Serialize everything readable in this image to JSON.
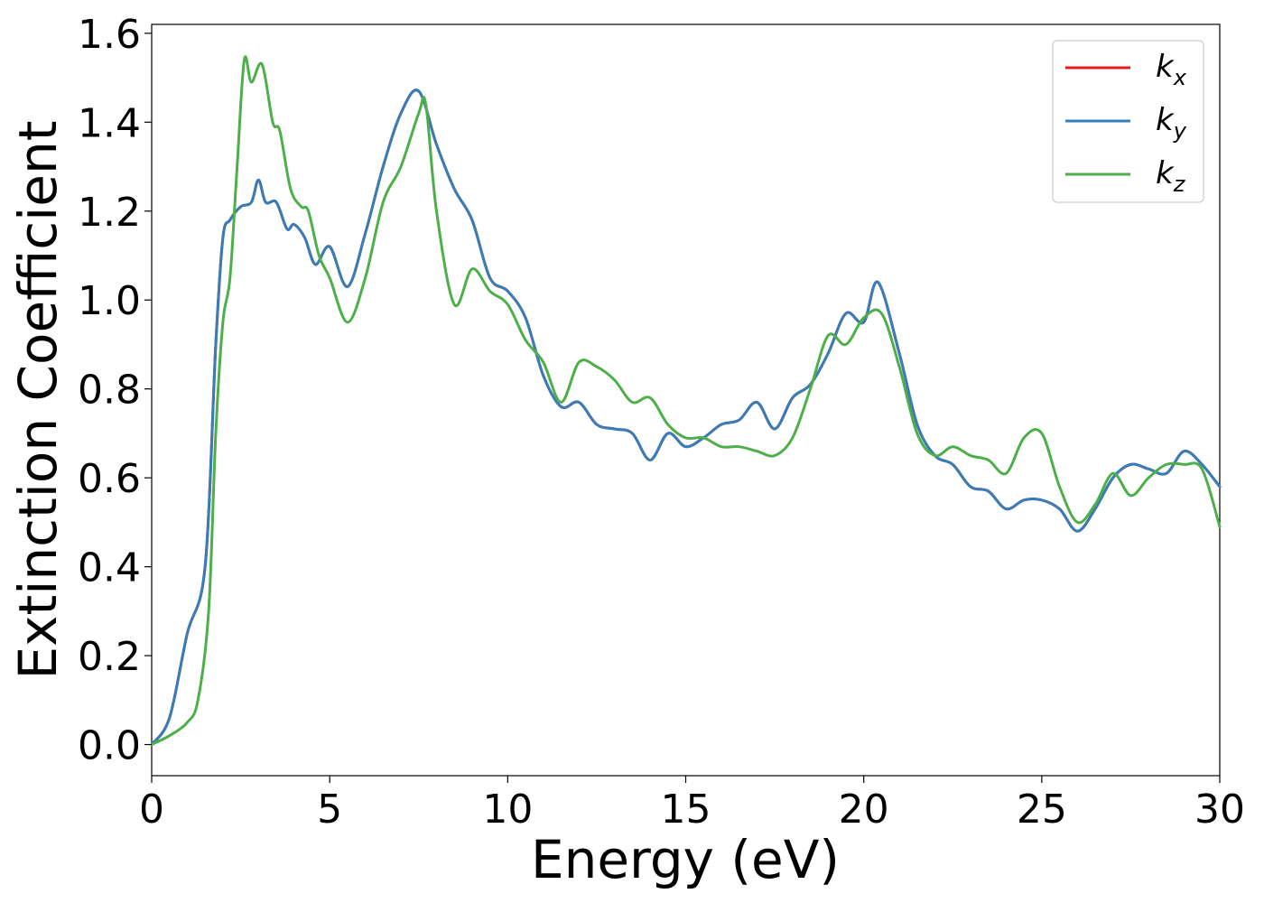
{
  "chart_data": {
    "type": "line",
    "title": "",
    "xlabel": "Energy (eV)",
    "ylabel": "Extinction Coefficient",
    "xlim": [
      0,
      30
    ],
    "ylim": [
      -0.07,
      1.62
    ],
    "xticks": [
      0,
      5,
      10,
      15,
      20,
      25,
      30
    ],
    "xtick_labels": [
      "0",
      "5",
      "10",
      "15",
      "20",
      "25",
      "30"
    ],
    "yticks": [
      0.0,
      0.2,
      0.4,
      0.6,
      0.8,
      1.0,
      1.2,
      1.4,
      1.6
    ],
    "ytick_labels": [
      "0.0",
      "0.2",
      "0.4",
      "0.6",
      "0.8",
      "1.0",
      "1.2",
      "1.4",
      "1.6"
    ],
    "grid": false,
    "legend_position": "top-right",
    "series": [
      {
        "name": "k",
        "subscript": "x",
        "color": "#e41a1c",
        "x": [
          0,
          0.5,
          1.0,
          1.5,
          1.8,
          2.0,
          2.2,
          2.5,
          2.8,
          3.0,
          3.2,
          3.5,
          3.8,
          4.0,
          4.3,
          4.6,
          5.0,
          5.5,
          6.0,
          6.5,
          7.0,
          7.5,
          8.0,
          8.5,
          9.0,
          9.5,
          10.0,
          10.5,
          11.0,
          11.5,
          12.0,
          12.5,
          13.0,
          13.5,
          14.0,
          14.5,
          15.0,
          15.5,
          16.0,
          16.5,
          17.0,
          17.5,
          18.0,
          18.5,
          19.0,
          19.5,
          20.0,
          20.4,
          21.0,
          21.5,
          22.0,
          22.5,
          23.0,
          23.5,
          24.0,
          24.5,
          25.0,
          25.5,
          26.0,
          26.5,
          27.0,
          27.5,
          28.0,
          28.5,
          29.0,
          29.5,
          30.0
        ],
        "y": [
          0.0,
          0.06,
          0.25,
          0.4,
          0.9,
          1.14,
          1.18,
          1.21,
          1.22,
          1.27,
          1.22,
          1.22,
          1.16,
          1.17,
          1.14,
          1.08,
          1.12,
          1.03,
          1.15,
          1.3,
          1.42,
          1.47,
          1.35,
          1.25,
          1.18,
          1.05,
          1.02,
          0.96,
          0.83,
          0.76,
          0.77,
          0.72,
          0.71,
          0.7,
          0.64,
          0.7,
          0.67,
          0.69,
          0.72,
          0.73,
          0.77,
          0.71,
          0.78,
          0.81,
          0.88,
          0.97,
          0.95,
          1.04,
          0.88,
          0.72,
          0.65,
          0.63,
          0.58,
          0.57,
          0.53,
          0.55,
          0.55,
          0.53,
          0.48,
          0.53,
          0.6,
          0.63,
          0.62,
          0.61,
          0.66,
          0.63,
          0.58
        ]
      },
      {
        "name": "k",
        "subscript": "y",
        "color": "#377eb8",
        "x": [
          0,
          0.5,
          1.0,
          1.5,
          1.8,
          2.0,
          2.2,
          2.5,
          2.8,
          3.0,
          3.2,
          3.5,
          3.8,
          4.0,
          4.3,
          4.6,
          5.0,
          5.5,
          6.0,
          6.5,
          7.0,
          7.5,
          8.0,
          8.5,
          9.0,
          9.5,
          10.0,
          10.5,
          11.0,
          11.5,
          12.0,
          12.5,
          13.0,
          13.5,
          14.0,
          14.5,
          15.0,
          15.5,
          16.0,
          16.5,
          17.0,
          17.5,
          18.0,
          18.5,
          19.0,
          19.5,
          20.0,
          20.4,
          21.0,
          21.5,
          22.0,
          22.5,
          23.0,
          23.5,
          24.0,
          24.5,
          25.0,
          25.5,
          26.0,
          26.5,
          27.0,
          27.5,
          28.0,
          28.5,
          29.0,
          29.5,
          30.0
        ],
        "y": [
          0.0,
          0.06,
          0.25,
          0.4,
          0.9,
          1.14,
          1.18,
          1.21,
          1.22,
          1.27,
          1.22,
          1.22,
          1.16,
          1.17,
          1.14,
          1.08,
          1.12,
          1.03,
          1.15,
          1.3,
          1.42,
          1.47,
          1.35,
          1.25,
          1.18,
          1.05,
          1.02,
          0.96,
          0.83,
          0.76,
          0.77,
          0.72,
          0.71,
          0.7,
          0.64,
          0.7,
          0.67,
          0.69,
          0.72,
          0.73,
          0.77,
          0.71,
          0.78,
          0.81,
          0.88,
          0.97,
          0.95,
          1.04,
          0.88,
          0.72,
          0.65,
          0.63,
          0.58,
          0.57,
          0.53,
          0.55,
          0.55,
          0.53,
          0.48,
          0.53,
          0.6,
          0.63,
          0.62,
          0.61,
          0.66,
          0.63,
          0.58
        ]
      },
      {
        "name": "k",
        "subscript": "z",
        "color": "#4daf4a",
        "x": [
          0,
          0.5,
          1.0,
          1.3,
          1.6,
          1.8,
          2.0,
          2.2,
          2.4,
          2.6,
          2.8,
          3.1,
          3.4,
          3.6,
          3.9,
          4.2,
          4.4,
          4.7,
          5.0,
          5.5,
          6.0,
          6.5,
          7.0,
          7.5,
          7.7,
          8.0,
          8.5,
          9.0,
          9.5,
          10.0,
          10.5,
          11.0,
          11.5,
          12.0,
          12.5,
          13.0,
          13.5,
          14.0,
          14.5,
          15.0,
          15.5,
          16.0,
          16.5,
          17.0,
          17.5,
          18.0,
          18.5,
          19.0,
          19.5,
          20.0,
          20.5,
          21.0,
          21.5,
          22.0,
          22.5,
          23.0,
          23.5,
          24.0,
          24.5,
          25.0,
          25.5,
          26.0,
          26.5,
          27.0,
          27.5,
          28.0,
          28.5,
          29.0,
          29.5,
          30.0
        ],
        "y": [
          0.0,
          0.02,
          0.05,
          0.1,
          0.3,
          0.7,
          0.95,
          1.05,
          1.3,
          1.54,
          1.49,
          1.53,
          1.4,
          1.38,
          1.25,
          1.21,
          1.2,
          1.1,
          1.05,
          0.95,
          1.05,
          1.22,
          1.3,
          1.42,
          1.44,
          1.2,
          0.99,
          1.07,
          1.02,
          0.99,
          0.91,
          0.86,
          0.77,
          0.86,
          0.85,
          0.82,
          0.77,
          0.78,
          0.72,
          0.69,
          0.69,
          0.67,
          0.67,
          0.66,
          0.65,
          0.69,
          0.8,
          0.92,
          0.9,
          0.96,
          0.97,
          0.85,
          0.7,
          0.65,
          0.67,
          0.65,
          0.64,
          0.61,
          0.69,
          0.7,
          0.58,
          0.5,
          0.54,
          0.61,
          0.56,
          0.6,
          0.63,
          0.63,
          0.62,
          0.49
        ]
      }
    ]
  }
}
